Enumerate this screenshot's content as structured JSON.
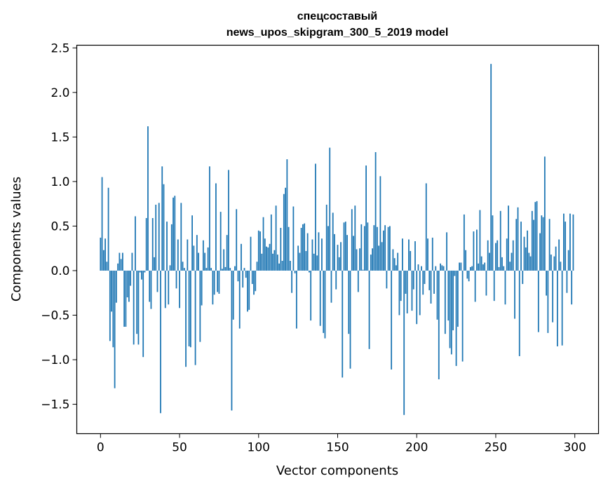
{
  "chart_data": {
    "type": "bar",
    "title_lines": [
      "спецсоставый",
      "news_upos_skipgram_300_5_2019 model"
    ],
    "xlabel": "Vector components",
    "ylabel": "Components values",
    "xlim": [
      -15,
      315
    ],
    "ylim": [
      -1.83,
      2.53
    ],
    "xticks": [
      0,
      50,
      100,
      150,
      200,
      250,
      300
    ],
    "xtick_labels": [
      "0",
      "50",
      "100",
      "150",
      "200",
      "250",
      "300"
    ],
    "yticks": [
      -1.5,
      -1.0,
      -0.5,
      0.0,
      0.5,
      1.0,
      1.5,
      2.0,
      2.5
    ],
    "ytick_labels": [
      "−1.5",
      "−1.0",
      "−0.5",
      "0.0",
      "0.5",
      "1.0",
      "1.5",
      "2.0",
      "2.5"
    ],
    "bar_color": "#1f77b4",
    "grid": false,
    "legend": "none",
    "x": [
      0,
      1,
      2,
      3,
      4,
      5,
      6,
      7,
      8,
      9,
      10,
      11,
      12,
      13,
      14,
      15,
      16,
      17,
      18,
      19,
      20,
      21,
      22,
      23,
      24,
      25,
      26,
      27,
      28,
      29,
      30,
      31,
      32,
      33,
      34,
      35,
      36,
      37,
      38,
      39,
      40,
      41,
      42,
      43,
      44,
      45,
      46,
      47,
      48,
      49,
      50,
      51,
      52,
      53,
      54,
      55,
      56,
      57,
      58,
      59,
      60,
      61,
      62,
      63,
      64,
      65,
      66,
      67,
      68,
      69,
      70,
      71,
      72,
      73,
      74,
      75,
      76,
      77,
      78,
      79,
      80,
      81,
      82,
      83,
      84,
      85,
      86,
      87,
      88,
      89,
      90,
      91,
      92,
      93,
      94,
      95,
      96,
      97,
      98,
      99,
      100,
      101,
      102,
      103,
      104,
      105,
      106,
      107,
      108,
      109,
      110,
      111,
      112,
      113,
      114,
      115,
      116,
      117,
      118,
      119,
      120,
      121,
      122,
      123,
      124,
      125,
      126,
      127,
      128,
      129,
      130,
      131,
      132,
      133,
      134,
      135,
      136,
      137,
      138,
      139,
      140,
      141,
      142,
      143,
      144,
      145,
      146,
      147,
      148,
      149,
      150,
      151,
      152,
      153,
      154,
      155,
      156,
      157,
      158,
      159,
      160,
      161,
      162,
      163,
      164,
      165,
      166,
      167,
      168,
      169,
      170,
      171,
      172,
      173,
      174,
      175,
      176,
      177,
      178,
      179,
      180,
      181,
      182,
      183,
      184,
      185,
      186,
      187,
      188,
      189,
      190,
      191,
      192,
      193,
      194,
      195,
      196,
      197,
      198,
      199,
      200,
      201,
      202,
      203,
      204,
      205,
      206,
      207,
      208,
      209,
      210,
      211,
      212,
      213,
      214,
      215,
      216,
      217,
      218,
      219,
      220,
      221,
      222,
      223,
      224,
      225,
      226,
      227,
      228,
      229,
      230,
      231,
      232,
      233,
      234,
      235,
      236,
      237,
      238,
      239,
      240,
      241,
      242,
      243,
      244,
      245,
      246,
      247,
      248,
      249,
      250,
      251,
      252,
      253,
      254,
      255,
      256,
      257,
      258,
      259,
      260,
      261,
      262,
      263,
      264,
      265,
      266,
      267,
      268,
      269,
      270,
      271,
      272,
      273,
      274,
      275,
      276,
      277,
      278,
      279,
      280,
      281,
      282,
      283,
      284,
      285,
      286,
      287,
      288,
      289,
      290,
      291,
      292,
      293,
      294,
      295,
      296,
      297,
      298,
      299
    ],
    "values": [
      0.37,
      1.05,
      0.23,
      0.36,
      0.1,
      0.93,
      -0.79,
      -0.46,
      -0.86,
      -1.32,
      -0.36,
      0.08,
      0.2,
      0.13,
      0.2,
      -0.63,
      -0.63,
      -0.3,
      -0.35,
      -0.17,
      0.2,
      -0.83,
      0.61,
      -0.71,
      -0.83,
      -0.02,
      -0.1,
      -0.97,
      -0.02,
      0.59,
      1.62,
      -0.35,
      -0.43,
      0.59,
      0.15,
      0.74,
      -0.24,
      0.76,
      -1.6,
      1.17,
      0.97,
      -0.42,
      0.55,
      -0.38,
      0.06,
      0.52,
      0.82,
      0.84,
      -0.2,
      0.35,
      -0.42,
      0.76,
      0.1,
      0.03,
      -1.08,
      0.35,
      -0.85,
      -0.86,
      0.62,
      0.28,
      -1.06,
      0.4,
      0.2,
      -0.8,
      -0.39,
      0.34,
      0.2,
      0.03,
      0.26,
      1.17,
      0.03,
      -0.38,
      -0.27,
      0.98,
      -0.24,
      -0.26,
      0.66,
      0.02,
      0.24,
      0.04,
      0.4,
      1.13,
      0.03,
      -1.57,
      -0.55,
      0.05,
      0.69,
      -0.12,
      -0.65,
      0.3,
      -0.19,
      0.03,
      -0.08,
      -0.46,
      -0.44,
      0.38,
      -0.15,
      -0.27,
      -0.23,
      0.1,
      0.45,
      0.44,
      0.19,
      0.6,
      0.36,
      0.27,
      0.26,
      0.3,
      0.63,
      0.19,
      0.23,
      0.73,
      0.18,
      0.08,
      0.48,
      0.11,
      0.86,
      0.93,
      1.25,
      0.49,
      0.11,
      -0.25,
      0.72,
      -0.03,
      -0.65,
      0.28,
      0.2,
      0.48,
      0.52,
      0.53,
      0.22,
      0.42,
      -0.02,
      -0.56,
      0.35,
      0.19,
      1.2,
      0.17,
      0.43,
      -0.62,
      0.36,
      -0.7,
      -0.76,
      0.74,
      0.5,
      1.38,
      -0.36,
      0.65,
      0.41,
      -0.21,
      0.29,
      0.15,
      0.32,
      -1.2,
      0.54,
      0.55,
      0.4,
      -0.71,
      -1.1,
      0.69,
      0.39,
      0.73,
      0.24,
      -0.24,
      0.25,
      0.52,
      0.01,
      0.5,
      1.18,
      0.54,
      -0.88,
      0.18,
      0.25,
      0.51,
      1.33,
      0.49,
      0.28,
      1.06,
      0.32,
      0.45,
      0.51,
      -0.2,
      0.49,
      0.5,
      -1.11,
      0.24,
      0.14,
      0.06,
      0.2,
      -0.5,
      -0.34,
      0.36,
      -1.62,
      -0.26,
      -0.48,
      0.35,
      0.22,
      -0.45,
      -0.21,
      0.33,
      -0.6,
      0.07,
      -0.5,
      0.05,
      -0.27,
      -0.15,
      0.98,
      0.36,
      -0.22,
      -0.37,
      0.37,
      -0.26,
      0.05,
      -0.55,
      -1.22,
      0.08,
      0.06,
      0.05,
      -0.71,
      0.43,
      -0.56,
      -0.87,
      -0.94,
      -0.67,
      -0.06,
      -1.07,
      -0.63,
      0.09,
      0.09,
      -1.02,
      0.63,
      0.23,
      -0.09,
      -0.12,
      0.04,
      0.05,
      0.44,
      -0.35,
      0.46,
      0.08,
      0.68,
      0.16,
      0.07,
      0.09,
      -0.28,
      0.34,
      0.2,
      2.32,
      0.62,
      -0.34,
      0.31,
      0.34,
      0.04,
      0.67,
      0.15,
      0.05,
      -0.38,
      0.36,
      0.73,
      0.1,
      0.2,
      0.34,
      -0.54,
      0.58,
      0.71,
      -0.96,
      0.55,
      -0.15,
      0.38,
      0.26,
      0.45,
      0.2,
      0.16,
      0.67,
      0.57,
      0.77,
      0.78,
      -0.69,
      0.42,
      0.62,
      0.6,
      1.28,
      -0.28,
      -0.7,
      0.58,
      0.18,
      -0.58,
      0.16,
      0.27,
      -0.85,
      0.35,
      0.1,
      -0.84,
      0.64,
      0.55,
      -0.25,
      0.23,
      0.64,
      -0.38,
      0.63
    ]
  }
}
